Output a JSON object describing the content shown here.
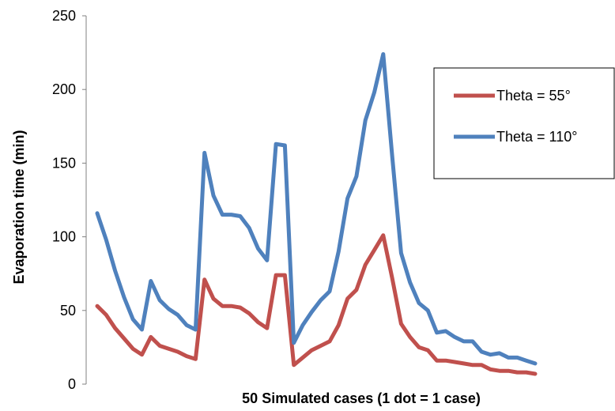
{
  "chart_data": {
    "type": "line",
    "title": "",
    "xlabel": "50 Simulated cases (1 dot = 1 case)",
    "ylabel": "Evaporation time (min)",
    "ylim": [
      0,
      250
    ],
    "yticks": [
      "0",
      "50",
      "100",
      "150",
      "200",
      "250"
    ],
    "x_tick_labels": false,
    "grid": false,
    "legend_position": "right",
    "x": [
      1,
      2,
      3,
      4,
      5,
      6,
      7,
      8,
      9,
      10,
      11,
      12,
      13,
      14,
      15,
      16,
      17,
      18,
      19,
      20,
      21,
      22,
      23,
      24,
      25,
      26,
      27,
      28,
      29,
      30,
      31,
      32,
      33,
      34,
      35,
      36,
      37,
      38,
      39,
      40,
      41,
      42,
      43,
      44,
      45,
      46,
      47,
      48,
      49,
      50
    ],
    "series": [
      {
        "name": "Theta = 55°",
        "color": "#c0504d",
        "values": [
          53,
          47,
          38,
          31,
          24,
          20,
          32,
          26,
          24,
          22,
          19,
          17,
          71,
          58,
          53,
          53,
          52,
          48,
          42,
          38,
          74,
          74,
          13,
          18,
          23,
          26,
          29,
          40,
          58,
          64,
          81,
          91,
          101,
          72,
          41,
          32,
          25,
          23,
          16,
          16,
          15,
          14,
          13,
          13,
          10,
          9,
          9,
          8,
          8,
          7
        ]
      },
      {
        "name": "Theta = 110°",
        "color": "#4f81bd",
        "values": [
          116,
          98,
          77,
          59,
          44,
          37,
          70,
          57,
          51,
          47,
          40,
          37,
          157,
          128,
          115,
          115,
          114,
          106,
          92,
          84,
          163,
          162,
          28,
          40,
          49,
          57,
          63,
          90,
          126,
          141,
          179,
          198,
          224,
          155,
          89,
          69,
          55,
          50,
          35,
          36,
          32,
          29,
          29,
          22,
          20,
          21,
          18,
          18,
          16,
          14
        ]
      }
    ]
  }
}
